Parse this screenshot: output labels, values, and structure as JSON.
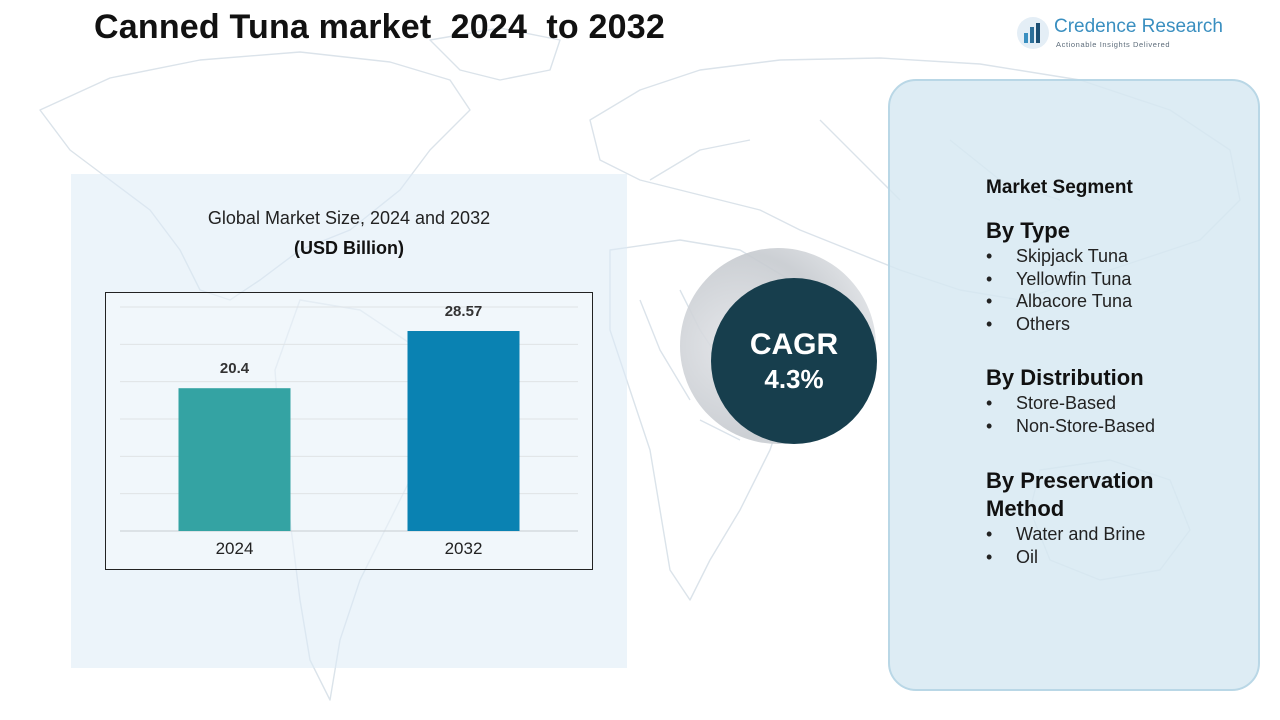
{
  "header": {
    "title": "Canned Tuna market  2024  to 2032"
  },
  "logo": {
    "name": "Credence Research",
    "tagline": "Actionable Insights Delivered",
    "icon": "bar-chart-logo-icon"
  },
  "chart_data": {
    "type": "bar",
    "title": "Global Market Size, 2024 and 2032",
    "subtitle": "(USD Billion)",
    "categories": [
      "2024",
      "2032"
    ],
    "values": [
      20.4,
      28.57
    ],
    "value_labels": [
      "20.4",
      "28.57"
    ],
    "ylim": [
      0,
      32
    ],
    "grid": true,
    "colors": [
      "#34a3a3",
      "#0a82b2"
    ]
  },
  "cagr": {
    "label": "CAGR",
    "value": "4.3%"
  },
  "segments": {
    "heading": "Market Segment",
    "groups": [
      {
        "title": "By Type",
        "items": [
          "Skipjack Tuna",
          "Yellowfin Tuna",
          "Albacore Tuna",
          "Others"
        ]
      },
      {
        "title": "By Distribution",
        "items": [
          "Store-Based",
          "Non-Store-Based"
        ]
      },
      {
        "title": "By Preservation Method",
        "items": [
          "Water and Brine",
          "Oil"
        ]
      }
    ]
  },
  "colors": {
    "cagr_circle": "#173e4d",
    "panel": "#d6e8f2",
    "logo_text": "#3a8fc0"
  }
}
